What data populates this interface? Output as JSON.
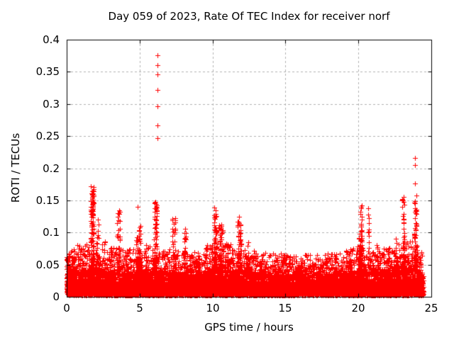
{
  "figure": {
    "background": "#ffffff"
  },
  "chart_data": {
    "type": "scatter",
    "title": "Day 059 of 2023, Rate Of TEC Index for receiver norf",
    "xlabel": "GPS time / hours",
    "ylabel": "ROTI / TECUs",
    "xlim": [
      0,
      25
    ],
    "ylim": [
      0,
      0.4
    ],
    "xticks": [
      0,
      5,
      10,
      15,
      20,
      25
    ],
    "xtick_labels": [
      "0",
      "5",
      "10",
      "15",
      "20",
      "25"
    ],
    "yticks": [
      0,
      0.05,
      0.1,
      0.15,
      0.2,
      0.25,
      0.3,
      0.35,
      0.4
    ],
    "ytick_labels": [
      "0",
      "0.05",
      "0.1",
      "0.15",
      "0.2",
      "0.25",
      "0.3",
      "0.35",
      "0.4"
    ],
    "grid": true,
    "legend": "none",
    "marker": "plus",
    "marker_color": "#ff0000",
    "grid_color": "#b0b0b0",
    "axis_color": "#000000",
    "seed": 2023059,
    "time_range": [
      0,
      24.45
    ],
    "base_band": {
      "n": 9000,
      "floor": 0.002,
      "top_by_hour": [
        [
          0,
          0.036
        ],
        [
          1,
          0.038
        ],
        [
          2,
          0.04
        ],
        [
          3,
          0.037
        ],
        [
          4,
          0.036
        ],
        [
          5,
          0.036
        ],
        [
          6,
          0.038
        ],
        [
          7,
          0.036
        ],
        [
          8,
          0.034
        ],
        [
          9,
          0.033
        ],
        [
          10,
          0.04
        ],
        [
          11,
          0.04
        ],
        [
          12,
          0.038
        ],
        [
          13,
          0.034
        ],
        [
          14,
          0.032
        ],
        [
          15,
          0.032
        ],
        [
          16,
          0.031
        ],
        [
          17,
          0.031
        ],
        [
          18,
          0.032
        ],
        [
          19,
          0.034
        ],
        [
          20,
          0.038
        ],
        [
          21,
          0.036
        ],
        [
          22,
          0.036
        ],
        [
          23,
          0.04
        ],
        [
          24,
          0.042
        ],
        [
          24.45,
          0.03
        ]
      ]
    },
    "tips": {
      "n": 2600,
      "max_factor": 2.1
    },
    "clusters": [
      {
        "t": 0.1,
        "dt": 0.08,
        "v0": 0.03,
        "v1": 0.067,
        "n": 12
      },
      {
        "t": 0.45,
        "dt": 0.1,
        "v0": 0.03,
        "v1": 0.06,
        "n": 10
      },
      {
        "t": 0.85,
        "dt": 0.12,
        "v0": 0.03,
        "v1": 0.08,
        "n": 15
      },
      {
        "t": 1.3,
        "dt": 0.1,
        "v0": 0.03,
        "v1": 0.07,
        "n": 12
      },
      {
        "t": 1.75,
        "dt": 0.12,
        "v0": 0.04,
        "v1": 0.172,
        "n": 110
      },
      {
        "t": 1.78,
        "dt": 0.05,
        "v0": 0.128,
        "v1": 0.165,
        "n": 40
      },
      {
        "t": 2.1,
        "dt": 0.08,
        "v0": 0.04,
        "v1": 0.12,
        "n": 22
      },
      {
        "t": 2.6,
        "dt": 0.05,
        "v0": 0.04,
        "v1": 0.086,
        "n": 14
      },
      {
        "t": 3.0,
        "dt": 0.06,
        "v0": 0.03,
        "v1": 0.075,
        "n": 12
      },
      {
        "t": 3.55,
        "dt": 0.1,
        "v0": 0.04,
        "v1": 0.134,
        "n": 40
      },
      {
        "t": 4.1,
        "dt": 0.06,
        "v0": 0.03,
        "v1": 0.072,
        "n": 12
      },
      {
        "t": 4.8,
        "dt": 0.08,
        "v0": 0.04,
        "v1": 0.093,
        "n": 20
      },
      {
        "t": 5.0,
        "dt": 0.06,
        "v0": 0.04,
        "v1": 0.11,
        "n": 24
      },
      {
        "t": 5.5,
        "dt": 0.06,
        "v0": 0.03,
        "v1": 0.08,
        "n": 12
      },
      {
        "t": 6.1,
        "dt": 0.1,
        "v0": 0.04,
        "v1": 0.148,
        "n": 60
      },
      {
        "t": 6.7,
        "dt": 0.06,
        "v0": 0.03,
        "v1": 0.07,
        "n": 10
      },
      {
        "t": 7.35,
        "dt": 0.12,
        "v0": 0.04,
        "v1": 0.122,
        "n": 40
      },
      {
        "t": 8.1,
        "dt": 0.08,
        "v0": 0.04,
        "v1": 0.106,
        "n": 24
      },
      {
        "t": 8.6,
        "dt": 0.06,
        "v0": 0.03,
        "v1": 0.065,
        "n": 10
      },
      {
        "t": 9.05,
        "dt": 0.07,
        "v0": 0.03,
        "v1": 0.068,
        "n": 12
      },
      {
        "t": 9.6,
        "dt": 0.06,
        "v0": 0.03,
        "v1": 0.08,
        "n": 12
      },
      {
        "t": 10.2,
        "dt": 0.1,
        "v0": 0.04,
        "v1": 0.139,
        "n": 70
      },
      {
        "t": 10.55,
        "dt": 0.15,
        "v0": 0.04,
        "v1": 0.112,
        "n": 50
      },
      {
        "t": 11.05,
        "dt": 0.1,
        "v0": 0.03,
        "v1": 0.082,
        "n": 20
      },
      {
        "t": 11.85,
        "dt": 0.12,
        "v0": 0.04,
        "v1": 0.125,
        "n": 55
      },
      {
        "t": 12.45,
        "dt": 0.06,
        "v0": 0.03,
        "v1": 0.085,
        "n": 12
      },
      {
        "t": 13.3,
        "dt": 0.1,
        "v0": 0.03,
        "v1": 0.056,
        "n": 14
      },
      {
        "t": 14.2,
        "dt": 0.1,
        "v0": 0.03,
        "v1": 0.05,
        "n": 10
      },
      {
        "t": 15.05,
        "dt": 0.06,
        "v0": 0.03,
        "v1": 0.062,
        "n": 10
      },
      {
        "t": 16.0,
        "dt": 0.1,
        "v0": 0.03,
        "v1": 0.05,
        "n": 10
      },
      {
        "t": 16.9,
        "dt": 0.08,
        "v0": 0.03,
        "v1": 0.052,
        "n": 10
      },
      {
        "t": 17.8,
        "dt": 0.08,
        "v0": 0.03,
        "v1": 0.055,
        "n": 10
      },
      {
        "t": 18.4,
        "dt": 0.08,
        "v0": 0.03,
        "v1": 0.058,
        "n": 10
      },
      {
        "t": 19.3,
        "dt": 0.1,
        "v0": 0.03,
        "v1": 0.056,
        "n": 12
      },
      {
        "t": 20.15,
        "dt": 0.1,
        "v0": 0.04,
        "v1": 0.142,
        "n": 60
      },
      {
        "t": 20.7,
        "dt": 0.05,
        "v0": 0.04,
        "v1": 0.138,
        "n": 16
      },
      {
        "t": 21.3,
        "dt": 0.07,
        "v0": 0.03,
        "v1": 0.08,
        "n": 12
      },
      {
        "t": 22.0,
        "dt": 0.08,
        "v0": 0.03,
        "v1": 0.07,
        "n": 12
      },
      {
        "t": 22.6,
        "dt": 0.08,
        "v0": 0.03,
        "v1": 0.09,
        "n": 15
      },
      {
        "t": 23.1,
        "dt": 0.08,
        "v0": 0.04,
        "v1": 0.155,
        "n": 40
      },
      {
        "t": 23.9,
        "dt": 0.08,
        "v0": 0.04,
        "v1": 0.158,
        "n": 70
      }
    ],
    "outliers": [
      [
        6.22,
        0.376
      ],
      [
        6.22,
        0.36
      ],
      [
        6.22,
        0.346
      ],
      [
        6.205,
        0.322
      ],
      [
        6.235,
        0.322
      ],
      [
        6.22,
        0.296
      ],
      [
        6.22,
        0.267
      ],
      [
        6.22,
        0.247
      ],
      [
        4.86,
        0.14
      ],
      [
        23.88,
        0.216
      ],
      [
        23.9,
        0.205
      ],
      [
        23.87,
        0.176
      ]
    ]
  }
}
